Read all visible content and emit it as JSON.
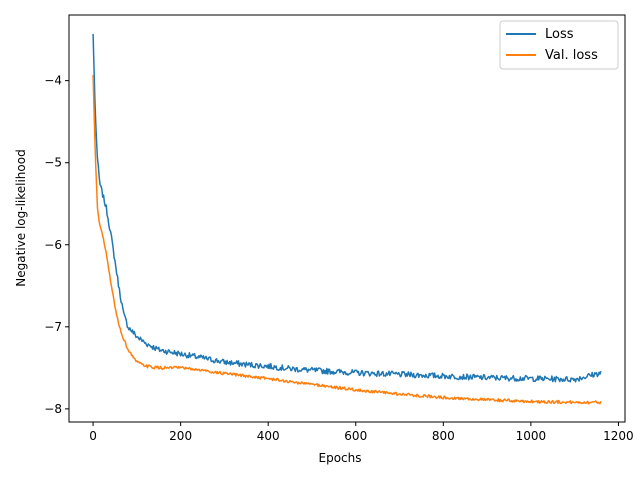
{
  "chart_data": {
    "type": "line",
    "title": "",
    "xlabel": "Epochs",
    "ylabel": "Negative log-likelihood",
    "xlim": [
      -55,
      1215
    ],
    "ylim": [
      -8.16,
      -3.2
    ],
    "xticks": [
      0,
      200,
      400,
      600,
      800,
      1000,
      1200
    ],
    "yticks": [
      -8,
      -7,
      -6,
      -5,
      -4
    ],
    "grid": false,
    "legend_position": "top-right",
    "series": [
      {
        "name": "Loss",
        "color": "#1f77b4",
        "x": [
          0,
          5,
          10,
          15,
          20,
          30,
          40,
          50,
          60,
          70,
          80,
          100,
          120,
          150,
          200,
          250,
          300,
          350,
          400,
          450,
          500,
          600,
          700,
          800,
          900,
          1000,
          1100,
          1160
        ],
        "y": [
          -3.43,
          -4.4,
          -4.95,
          -5.25,
          -5.35,
          -5.55,
          -5.85,
          -6.2,
          -6.55,
          -6.85,
          -7.0,
          -7.12,
          -7.2,
          -7.28,
          -7.33,
          -7.38,
          -7.43,
          -7.46,
          -7.48,
          -7.51,
          -7.53,
          -7.56,
          -7.58,
          -7.6,
          -7.62,
          -7.63,
          -7.64,
          -7.56
        ],
        "noise": 0.035
      },
      {
        "name": "Val. loss",
        "color": "#ff7f0e",
        "x": [
          0,
          5,
          10,
          15,
          20,
          30,
          40,
          50,
          60,
          70,
          80,
          100,
          120,
          150,
          200,
          250,
          300,
          350,
          400,
          450,
          500,
          600,
          700,
          800,
          900,
          1000,
          1100,
          1160
        ],
        "y": [
          -3.93,
          -4.9,
          -5.55,
          -5.75,
          -5.85,
          -6.1,
          -6.45,
          -6.75,
          -7.0,
          -7.15,
          -7.28,
          -7.43,
          -7.48,
          -7.5,
          -7.5,
          -7.53,
          -7.57,
          -7.6,
          -7.63,
          -7.67,
          -7.7,
          -7.77,
          -7.82,
          -7.86,
          -7.89,
          -7.91,
          -7.92,
          -7.92
        ],
        "noise": 0.018
      }
    ]
  }
}
